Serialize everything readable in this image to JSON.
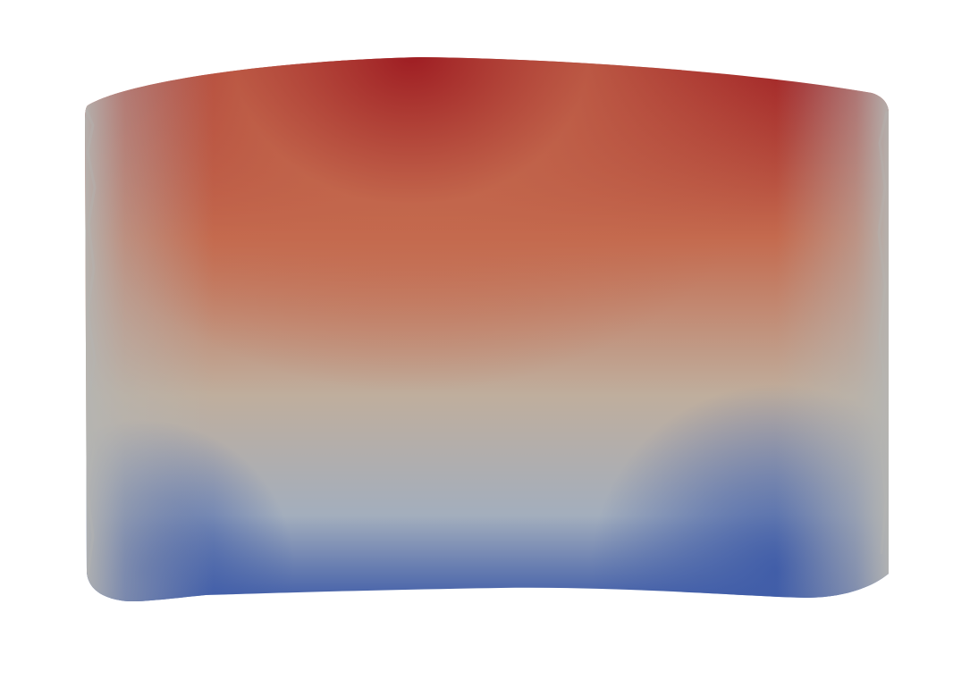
{
  "scene": {
    "background_color": "#ffffff",
    "object": "deformed-cylindrical-shell",
    "colormap": {
      "name": "cool-to-warm",
      "high_color": "#9e1c22",
      "mid_high_color": "#c46a4e",
      "mid_color": "#bfae9d",
      "mid_low_color": "#a3aebd",
      "low_color": "#3f5ca8",
      "edge_color": "#b5b5b2"
    }
  }
}
